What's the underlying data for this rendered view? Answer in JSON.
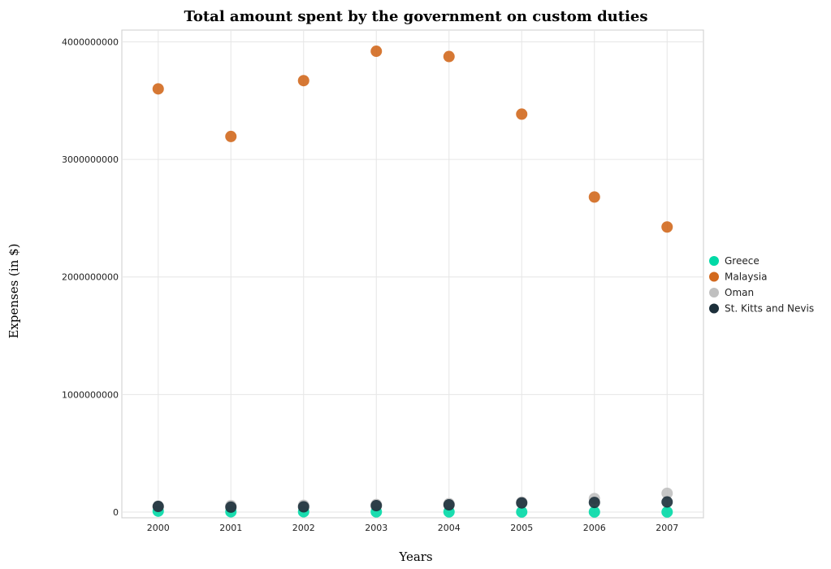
{
  "chart_data": {
    "type": "scatter",
    "title": "Total amount spent by the government on custom duties",
    "xlabel": "Years",
    "ylabel": "Expenses (in $)",
    "x": [
      "2000",
      "2001",
      "2002",
      "2003",
      "2004",
      "2005",
      "2006",
      "2007"
    ],
    "ylim": [
      0,
      4100000000
    ],
    "yticks": [
      0,
      1000000000,
      2000000000,
      3000000000,
      4000000000
    ],
    "ytick_labels": [
      "0",
      "1000000000",
      "2000000000",
      "3000000000",
      "4000000000"
    ],
    "grid": true,
    "legend_position": "right",
    "series": [
      {
        "name": "Greece",
        "color": "#00d9a6",
        "values": [
          8000000,
          3000000,
          3000000,
          2000000,
          2000000,
          1000000,
          1000000,
          1000000
        ]
      },
      {
        "name": "Malaysia",
        "color": "#d2691e",
        "values": [
          3600000000,
          3195000000,
          3670000000,
          3920000000,
          3875000000,
          3385000000,
          2680000000,
          2425000000
        ]
      },
      {
        "name": "Oman",
        "color": "#c0c0c0",
        "values": [
          50000000,
          55000000,
          58000000,
          65000000,
          72000000,
          85000000,
          115000000,
          160000000
        ]
      },
      {
        "name": "St. Kitts and Nevis",
        "color": "#1c2f3a",
        "values": [
          48000000,
          42000000,
          45000000,
          55000000,
          62000000,
          78000000,
          82000000,
          86000000
        ]
      }
    ]
  }
}
